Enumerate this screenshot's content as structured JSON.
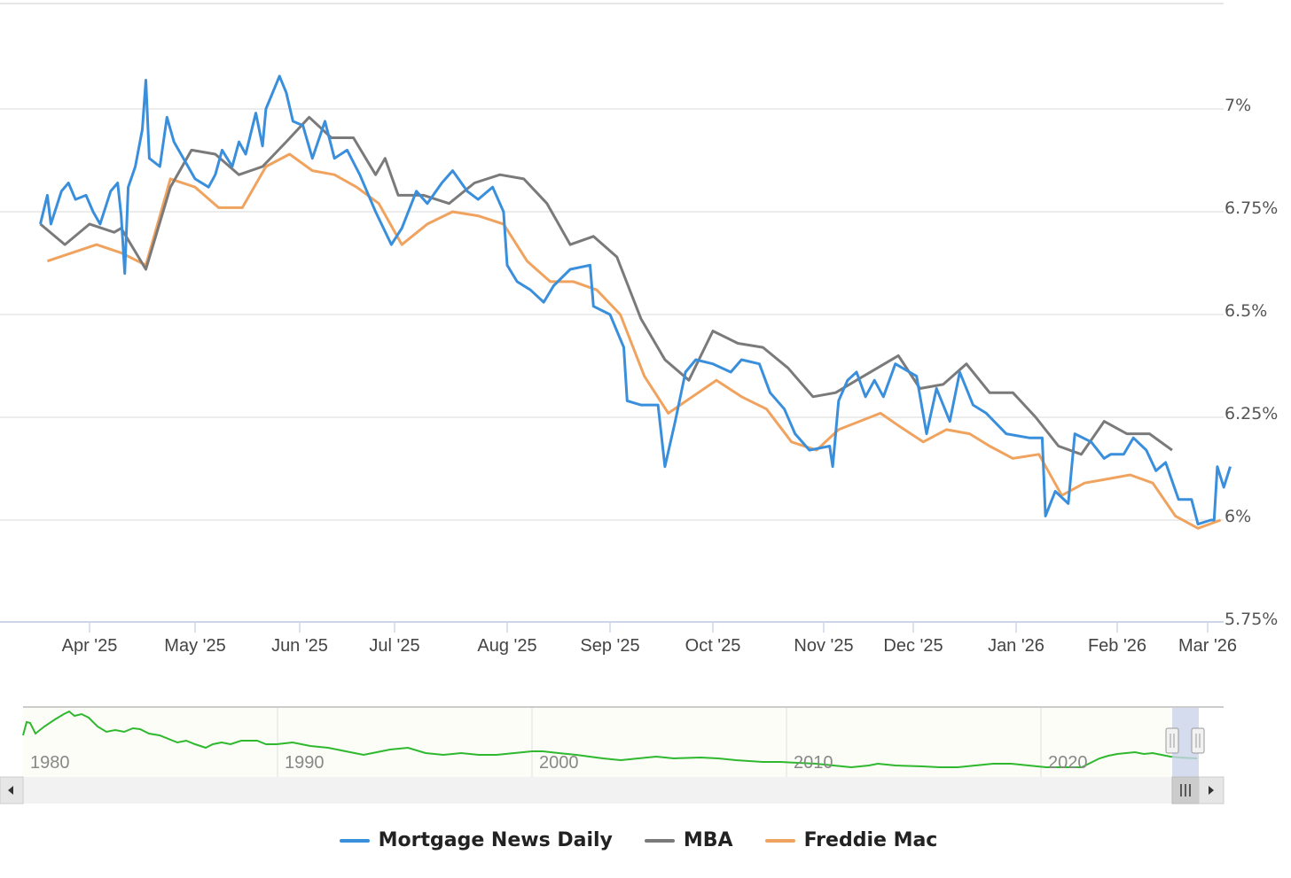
{
  "chart_data": {
    "type": "line",
    "title": "",
    "xlabel": "",
    "ylabel": "",
    "ylim": [
      5.75,
      7.25
    ],
    "y_ticks": [
      "7%",
      "6.75%",
      "6.5%",
      "6.25%",
      "6%",
      "5.75%"
    ],
    "x_ticks": [
      "Apr '25",
      "May '25",
      "Jun '25",
      "Jul '25",
      "Aug '25",
      "Sep '25",
      "Oct '25",
      "Nov '25",
      "Dec '25",
      "Jan '26",
      "Feb '26",
      "Mar '26"
    ],
    "grid": true,
    "legend_position": "bottom",
    "series": [
      {
        "name": "Mortgage News Daily",
        "color": "#3a8fdc",
        "points": [
          [
            "Mar 18 '25",
            6.72
          ],
          [
            "Mar 20 '25",
            6.79
          ],
          [
            "Mar 21 '25",
            6.72
          ],
          [
            "Mar 24 '25",
            6.8
          ],
          [
            "Mar 26 '25",
            6.82
          ],
          [
            "Mar 28 '25",
            6.78
          ],
          [
            "Mar 31 '25",
            6.79
          ],
          [
            "Apr 2 '25",
            6.75
          ],
          [
            "Apr 4 '25",
            6.72
          ],
          [
            "Apr 7 '25",
            6.8
          ],
          [
            "Apr 9 '25",
            6.82
          ],
          [
            "Apr 10 '25",
            6.74
          ],
          [
            "Apr 11 '25",
            6.6
          ],
          [
            "Apr 12 '25",
            6.81
          ],
          [
            "Apr 14 '25",
            6.86
          ],
          [
            "Apr 16 '25",
            6.95
          ],
          [
            "Apr 17 '25",
            7.07
          ],
          [
            "Apr 18 '25",
            6.88
          ],
          [
            "Apr 21 '25",
            6.86
          ],
          [
            "Apr 23 '25",
            6.98
          ],
          [
            "Apr 25 '25",
            6.92
          ],
          [
            "May 1 '25",
            6.83
          ],
          [
            "May 5 '25",
            6.81
          ],
          [
            "May 7 '25",
            6.84
          ],
          [
            "May 9 '25",
            6.9
          ],
          [
            "May 12 '25",
            6.86
          ],
          [
            "May 14 '25",
            6.92
          ],
          [
            "May 16 '25",
            6.89
          ],
          [
            "May 19 '25",
            6.99
          ],
          [
            "May 21 '25",
            6.91
          ],
          [
            "May 22 '25",
            7.0
          ],
          [
            "May 26 '25",
            7.08
          ],
          [
            "May 28 '25",
            7.04
          ],
          [
            "May 30 '25",
            6.97
          ],
          [
            "Jun 2 '25",
            6.96
          ],
          [
            "Jun 5 '25",
            6.88
          ],
          [
            "Jun 9 '25",
            6.97
          ],
          [
            "Jun 12 '25",
            6.88
          ],
          [
            "Jun 16 '25",
            6.9
          ],
          [
            "Jun 20 '25",
            6.84
          ],
          [
            "Jun 25 '25",
            6.75
          ],
          [
            "Jun 30 '25",
            6.67
          ],
          [
            "Jul 3 '25",
            6.71
          ],
          [
            "Jul 7 '25",
            6.8
          ],
          [
            "Jul 10 '25",
            6.77
          ],
          [
            "Jul 14 '25",
            6.82
          ],
          [
            "Jul 17 '25",
            6.85
          ],
          [
            "Jul 21 '25",
            6.8
          ],
          [
            "Jul 24 '25",
            6.78
          ],
          [
            "Jul 28 '25",
            6.81
          ],
          [
            "Jul 31 '25",
            6.75
          ],
          [
            "Aug 1 '25",
            6.62
          ],
          [
            "Aug 4 '25",
            6.58
          ],
          [
            "Aug 8 '25",
            6.56
          ],
          [
            "Aug 12 '25",
            6.53
          ],
          [
            "Aug 15 '25",
            6.57
          ],
          [
            "Aug 20 '25",
            6.61
          ],
          [
            "Aug 26 '25",
            6.62
          ],
          [
            "Aug 27 '25",
            6.52
          ],
          [
            "Sep 1 '25",
            6.5
          ],
          [
            "Sep 5 '25",
            6.42
          ],
          [
            "Sep 6 '25",
            6.29
          ],
          [
            "Sep 10 '25",
            6.28
          ],
          [
            "Sep 15 '25",
            6.28
          ],
          [
            "Sep 17 '25",
            6.13
          ],
          [
            "Sep 20 '25",
            6.24
          ],
          [
            "Sep 23 '25",
            6.36
          ],
          [
            "Sep 26 '25",
            6.39
          ],
          [
            "Oct 1 '25",
            6.38
          ],
          [
            "Oct 6 '25",
            6.36
          ],
          [
            "Oct 9 '25",
            6.39
          ],
          [
            "Oct 14 '25",
            6.38
          ],
          [
            "Oct 17 '25",
            6.31
          ],
          [
            "Oct 21 '25",
            6.27
          ],
          [
            "Oct 24 '25",
            6.21
          ],
          [
            "Oct 28 '25",
            6.17
          ],
          [
            "Nov 3 '25",
            6.18
          ],
          [
            "Nov 4 '25",
            6.13
          ],
          [
            "Nov 6 '25",
            6.29
          ],
          [
            "Nov 9 '25",
            6.34
          ],
          [
            "Nov 12 '25",
            6.36
          ],
          [
            "Nov 15 '25",
            6.3
          ],
          [
            "Nov 18 '25",
            6.34
          ],
          [
            "Nov 21 '25",
            6.3
          ],
          [
            "Nov 25 '25",
            6.38
          ],
          [
            "Dec 2 '25",
            6.35
          ],
          [
            "Dec 5 '25",
            6.21
          ],
          [
            "Dec 8 '25",
            6.32
          ],
          [
            "Dec 12 '25",
            6.24
          ],
          [
            "Dec 15 '25",
            6.36
          ],
          [
            "Dec 19 '25",
            6.28
          ],
          [
            "Dec 23 '25",
            6.26
          ],
          [
            "Dec 29 '25",
            6.21
          ],
          [
            "Jan 5 '26",
            6.2
          ],
          [
            "Jan 9 '26",
            6.2
          ],
          [
            "Jan 10 '26",
            6.01
          ],
          [
            "Jan 13 '26",
            6.07
          ],
          [
            "Jan 17 '26",
            6.04
          ],
          [
            "Jan 19 '26",
            6.21
          ],
          [
            "Jan 24 '26",
            6.19
          ],
          [
            "Jan 28 '26",
            6.15
          ],
          [
            "Jan 30 '26",
            6.16
          ],
          [
            "Feb 3 '26",
            6.16
          ],
          [
            "Feb 6 '26",
            6.2
          ],
          [
            "Feb 10 '26",
            6.17
          ],
          [
            "Feb 13 '26",
            6.12
          ],
          [
            "Feb 16 '26",
            6.14
          ],
          [
            "Feb 20 '26",
            6.05
          ],
          [
            "Feb 24 '26",
            6.05
          ],
          [
            "Feb 26 '26",
            5.99
          ],
          [
            "Mar 2 '26",
            6.0
          ],
          [
            "Mar 3 '26",
            6.0
          ],
          [
            "Mar 4 '26",
            6.13
          ],
          [
            "Mar 6 '26",
            6.08
          ],
          [
            "Mar 8 '26",
            6.13
          ]
        ]
      },
      {
        "name": "MBA",
        "color": "#7a7a7a",
        "points": [
          [
            "Mar 18 '25",
            6.72
          ],
          [
            "Mar 25 '25",
            6.67
          ],
          [
            "Apr 1 '25",
            6.72
          ],
          [
            "Apr 8 '25",
            6.7
          ],
          [
            "Apr 10 '25",
            6.71
          ],
          [
            "Apr 17 '25",
            6.61
          ],
          [
            "Apr 24 '25",
            6.81
          ],
          [
            "Apr 30 '25",
            6.9
          ],
          [
            "May 7 '25",
            6.89
          ],
          [
            "May 14 '25",
            6.84
          ],
          [
            "May 21 '25",
            6.86
          ],
          [
            "May 28 '25",
            6.92
          ],
          [
            "Jun 4 '25",
            6.98
          ],
          [
            "Jun 11 '25",
            6.93
          ],
          [
            "Jun 18 '25",
            6.93
          ],
          [
            "Jun 25 '25",
            6.84
          ],
          [
            "Jun 28 '25",
            6.88
          ],
          [
            "Jul 2 '25",
            6.79
          ],
          [
            "Jul 9 '25",
            6.79
          ],
          [
            "Jul 16 '25",
            6.77
          ],
          [
            "Jul 23 '25",
            6.82
          ],
          [
            "Jul 30 '25",
            6.84
          ],
          [
            "Aug 6 '25",
            6.83
          ],
          [
            "Aug 13 '25",
            6.77
          ],
          [
            "Aug 20 '25",
            6.67
          ],
          [
            "Aug 27 '25",
            6.69
          ],
          [
            "Sep 3 '25",
            6.64
          ],
          [
            "Sep 10 '25",
            6.49
          ],
          [
            "Sep 17 '25",
            6.39
          ],
          [
            "Sep 24 '25",
            6.34
          ],
          [
            "Oct 1 '25",
            6.46
          ],
          [
            "Oct 8 '25",
            6.43
          ],
          [
            "Oct 15 '25",
            6.42
          ],
          [
            "Oct 22 '25",
            6.37
          ],
          [
            "Oct 29 '25",
            6.3
          ],
          [
            "Nov 5 '25",
            6.31
          ],
          [
            "Nov 12 '25",
            6.34
          ],
          [
            "Nov 19 '25",
            6.37
          ],
          [
            "Nov 26 '25",
            6.4
          ],
          [
            "Dec 3 '25",
            6.32
          ],
          [
            "Dec 10 '25",
            6.33
          ],
          [
            "Dec 17 '25",
            6.38
          ],
          [
            "Dec 24 '25",
            6.31
          ],
          [
            "Dec 31 '25",
            6.31
          ],
          [
            "Jan 7 '26",
            6.25
          ],
          [
            "Jan 14 '26",
            6.18
          ],
          [
            "Jan 21 '26",
            6.16
          ],
          [
            "Jan 28 '26",
            6.24
          ],
          [
            "Feb 4 '26",
            6.21
          ],
          [
            "Feb 11 '26",
            6.21
          ],
          [
            "Feb 18 '26",
            6.17
          ]
        ]
      },
      {
        "name": "Freddie Mac",
        "color": "#f0a35e",
        "points": [
          [
            "Mar 20 '25",
            6.63
          ],
          [
            "Apr 3 '25",
            6.67
          ],
          [
            "Apr 10 '25",
            6.65
          ],
          [
            "Apr 17 '25",
            6.62
          ],
          [
            "Apr 24 '25",
            6.83
          ],
          [
            "May 1 '25",
            6.81
          ],
          [
            "May 8 '25",
            6.76
          ],
          [
            "May 15 '25",
            6.76
          ],
          [
            "May 22 '25",
            6.86
          ],
          [
            "May 29 '25",
            6.89
          ],
          [
            "Jun 5 '25",
            6.85
          ],
          [
            "Jun 12 '25",
            6.84
          ],
          [
            "Jun 19 '25",
            6.81
          ],
          [
            "Jun 26 '25",
            6.77
          ],
          [
            "Jul 3 '25",
            6.67
          ],
          [
            "Jul 10 '25",
            6.72
          ],
          [
            "Jul 17 '25",
            6.75
          ],
          [
            "Jul 24 '25",
            6.74
          ],
          [
            "Jul 31 '25",
            6.72
          ],
          [
            "Aug 7 '25",
            6.63
          ],
          [
            "Aug 14 '25",
            6.58
          ],
          [
            "Aug 21 '25",
            6.58
          ],
          [
            "Aug 28 '25",
            6.56
          ],
          [
            "Sep 4 '25",
            6.5
          ],
          [
            "Sep 11 '25",
            6.35
          ],
          [
            "Sep 18 '25",
            6.26
          ],
          [
            "Sep 25 '25",
            6.3
          ],
          [
            "Oct 2 '25",
            6.34
          ],
          [
            "Oct 9 '25",
            6.3
          ],
          [
            "Oct 16 '25",
            6.27
          ],
          [
            "Oct 23 '25",
            6.19
          ],
          [
            "Oct 30 '25",
            6.17
          ],
          [
            "Nov 6 '25",
            6.22
          ],
          [
            "Nov 13 '25",
            6.24
          ],
          [
            "Nov 20 '25",
            6.26
          ],
          [
            "Nov 26 '25",
            6.23
          ],
          [
            "Dec 4 '25",
            6.19
          ],
          [
            "Dec 11 '25",
            6.22
          ],
          [
            "Dec 18 '25",
            6.21
          ],
          [
            "Dec 24 '25",
            6.18
          ],
          [
            "Dec 31 '25",
            6.15
          ],
          [
            "Jan 8 '26",
            6.16
          ],
          [
            "Jan 15 '26",
            6.06
          ],
          [
            "Jan 22 '26",
            6.09
          ],
          [
            "Jan 29 '26",
            6.1
          ],
          [
            "Feb 5 '26",
            6.11
          ],
          [
            "Feb 12 '26",
            6.09
          ],
          [
            "Feb 19 '26",
            6.01
          ],
          [
            "Feb 26 '26",
            5.98
          ],
          [
            "Mar 5 '26",
            6.0
          ]
        ]
      }
    ],
    "navigator": {
      "series_color": "#2eb82e",
      "x_ticks": [
        "1980",
        "1990",
        "2000",
        "2010",
        "2020"
      ],
      "selected_range": "Mar '25 – Mar '26"
    }
  },
  "legend": {
    "items": [
      {
        "label": "Mortgage News Daily",
        "color": "#3a8fdc"
      },
      {
        "label": "MBA",
        "color": "#7a7a7a"
      },
      {
        "label": "Freddie Mac",
        "color": "#f0a35e"
      }
    ]
  },
  "scrollbar": {
    "left_arrow": "◀",
    "right_arrow": "▶",
    "thumb_grip": "III"
  }
}
